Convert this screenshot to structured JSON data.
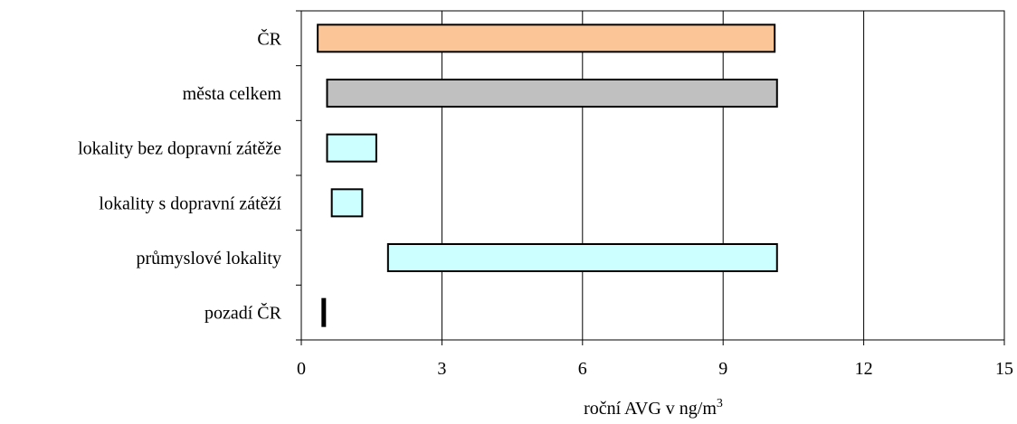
{
  "chart_data": {
    "type": "bar",
    "orientation": "horizontal",
    "subtype": "range",
    "categories": [
      "ČR",
      "města celkem",
      "lokality bez dopravní zátěže",
      "lokality s dopravní zátěží",
      "průmyslové lokality",
      "pozadí ČR"
    ],
    "ranges": [
      {
        "min": 0.35,
        "max": 10.1,
        "color": "#FBC598"
      },
      {
        "min": 0.55,
        "max": 10.15,
        "color": "#C0C0C0"
      },
      {
        "min": 0.55,
        "max": 1.6,
        "color": "#CCFFFF"
      },
      {
        "min": 0.65,
        "max": 1.3,
        "color": "#CCFFFF"
      },
      {
        "min": 1.85,
        "max": 10.15,
        "color": "#CCFFFF"
      },
      {
        "min": 0.45,
        "max": 0.47,
        "color": "#000000"
      }
    ],
    "xlim": [
      0,
      15
    ],
    "xticks": [
      "0",
      "3",
      "6",
      "9",
      "12",
      "15"
    ],
    "xlabel": "roční AVG v ng/m",
    "xlabel_superscript": "3",
    "ylabel": "",
    "title": "",
    "grid": "vertical"
  }
}
